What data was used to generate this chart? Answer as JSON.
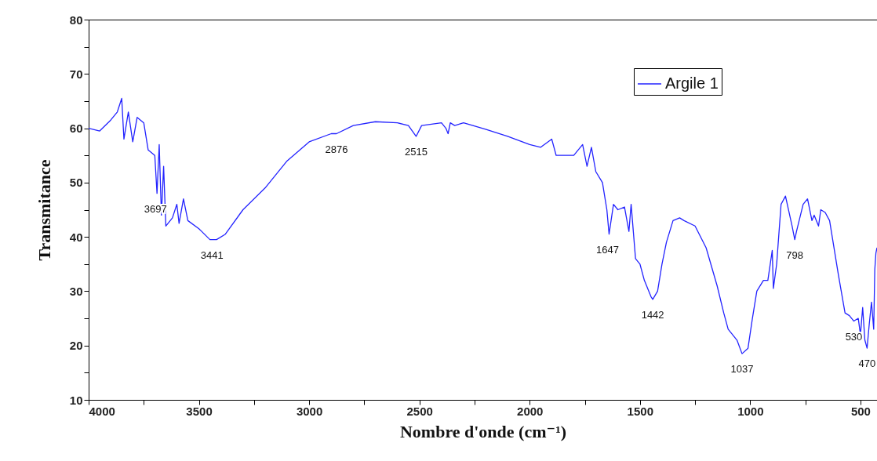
{
  "chart_data": {
    "type": "line",
    "xlabel": "Nombre d'onde (cm⁻¹)",
    "ylabel": "Transmitance",
    "xlim": [
      4000,
      425
    ],
    "ylim": [
      10,
      80
    ],
    "xticks": [
      4000,
      {
        "value": 3750,
        "label": null
      },
      3500,
      {
        "value": 3250,
        "label": null
      },
      3000,
      {
        "value": 2750,
        "label": null
      },
      2500,
      {
        "value": 2250,
        "label": null
      },
      2000,
      {
        "value": 1750,
        "label": null
      },
      1500,
      {
        "value": 1250,
        "label": null
      },
      1000,
      {
        "value": 750,
        "label": null
      },
      500
    ],
    "yticks": [
      10,
      {
        "value": 15,
        "label": null
      },
      20,
      {
        "value": 25,
        "label": null
      },
      30,
      {
        "value": 35,
        "label": null
      },
      40,
      {
        "value": 45,
        "label": null
      },
      50,
      {
        "value": 55,
        "label": null
      },
      60,
      {
        "value": 65,
        "label": null
      },
      70,
      {
        "value": 75,
        "label": null
      },
      80
    ],
    "grid": false,
    "legend": "top right",
    "marker": "none",
    "line_style": "solid",
    "series": [
      {
        "name": "Argile 1",
        "color": "#2323ff",
        "x": [
          4000,
          3950,
          3900,
          3870,
          3850,
          3840,
          3820,
          3800,
          3780,
          3750,
          3730,
          3700,
          3690,
          3680,
          3670,
          3660,
          3650,
          3620,
          3600,
          3590,
          3570,
          3550,
          3500,
          3450,
          3420,
          3380,
          3300,
          3200,
          3100,
          3000,
          2900,
          2876,
          2800,
          2700,
          2600,
          2550,
          2515,
          2490,
          2400,
          2380,
          2370,
          2360,
          2340,
          2300,
          2200,
          2100,
          2000,
          1950,
          1900,
          1880,
          1800,
          1760,
          1740,
          1720,
          1700,
          1670,
          1650,
          1640,
          1620,
          1600,
          1570,
          1550,
          1540,
          1520,
          1500,
          1480,
          1450,
          1442,
          1420,
          1400,
          1380,
          1350,
          1320,
          1300,
          1250,
          1200,
          1150,
          1120,
          1100,
          1060,
          1037,
          1010,
          990,
          970,
          940,
          920,
          900,
          895,
          880,
          860,
          840,
          810,
          798,
          790,
          760,
          740,
          720,
          710,
          690,
          680,
          660,
          640,
          600,
          570,
          550,
          530,
          510,
          500,
          490,
          480,
          470,
          460,
          450,
          440,
          435,
          430,
          425
        ],
        "values": [
          60,
          59.5,
          61.5,
          63,
          65.5,
          58,
          63,
          57.5,
          62,
          61,
          56,
          55,
          48,
          57,
          44,
          53,
          42,
          43.5,
          46,
          42.5,
          47,
          43,
          41.5,
          39.5,
          39.5,
          40.5,
          45,
          49,
          54,
          57.5,
          59,
          59,
          60.5,
          61.2,
          61,
          60.5,
          58.5,
          60.5,
          61,
          60,
          59,
          61,
          60.5,
          61,
          59.8,
          58.5,
          57,
          56.5,
          58,
          55,
          55,
          57,
          53,
          56.5,
          52,
          50,
          45,
          40.5,
          46,
          45,
          45.5,
          41,
          46,
          36,
          35,
          32,
          29,
          28.5,
          30,
          35,
          39,
          43,
          43.5,
          43,
          42,
          38,
          31,
          26,
          23,
          21,
          18.5,
          19.5,
          25,
          30,
          32,
          32,
          37.5,
          30.5,
          35,
          46,
          47.5,
          42,
          39.5,
          41,
          46,
          47,
          43,
          44,
          42,
          45,
          44.5,
          43,
          33,
          26,
          25.5,
          24.5,
          25,
          22,
          27,
          21,
          19.5,
          24,
          28,
          23,
          34,
          37,
          38
        ]
      }
    ],
    "annotations": [
      {
        "text": "3697",
        "x": 3697,
        "y": 48
      },
      {
        "text": "3441",
        "x": 3441,
        "y": 39.5
      },
      {
        "text": "2876",
        "x": 2876,
        "y": 59
      },
      {
        "text": "2515",
        "x": 2515,
        "y": 58.5
      },
      {
        "text": "1647",
        "x": 1647,
        "y": 40.5
      },
      {
        "text": "1442",
        "x": 1442,
        "y": 28.5
      },
      {
        "text": "1037",
        "x": 1037,
        "y": 18.5
      },
      {
        "text": "798",
        "x": 798,
        "y": 39.5
      },
      {
        "text": "530",
        "x": 530,
        "y": 24.5
      },
      {
        "text": "470",
        "x": 470,
        "y": 19.5
      }
    ]
  }
}
